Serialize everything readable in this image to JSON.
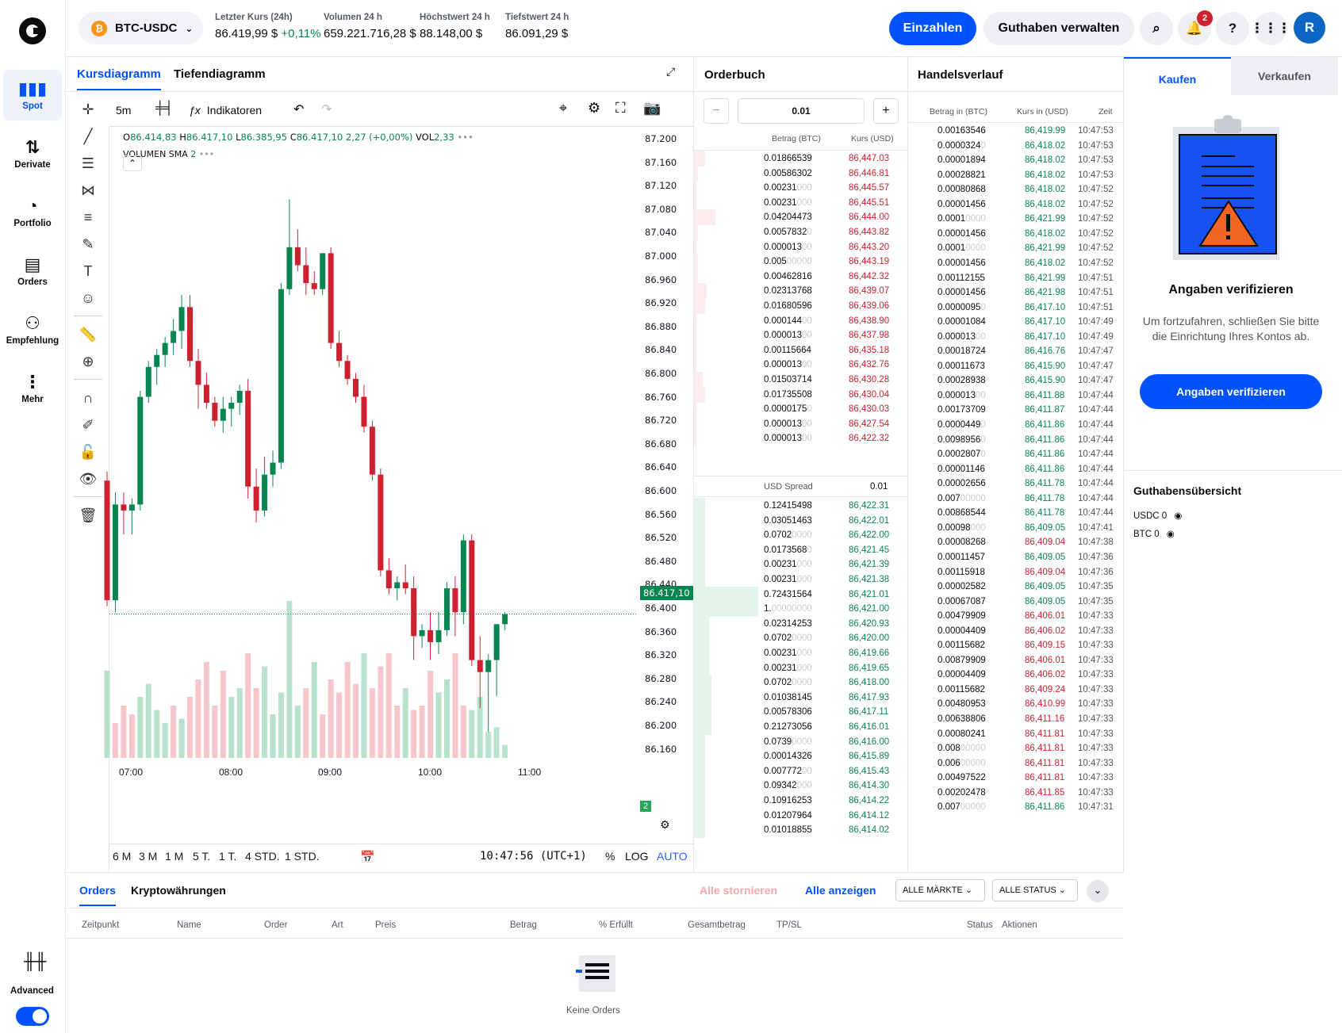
{
  "nav": {
    "items": [
      {
        "label": "Spot",
        "icon": "bar-chart-icon"
      },
      {
        "label": "Derivate",
        "icon": "swap-icon"
      },
      {
        "label": "Portfolio",
        "icon": "pie-chart-icon"
      },
      {
        "label": "Orders",
        "icon": "document-icon"
      },
      {
        "label": "Empfehlung",
        "icon": "add-user-icon"
      },
      {
        "label": "Mehr",
        "icon": "more-icon"
      }
    ],
    "advanced_label": "Advanced",
    "advanced_on": true
  },
  "header": {
    "pair": "BTC-USDC",
    "stats": [
      {
        "label": "Letzter Kurs (24h)",
        "value": "86.419,99 $",
        "change": "+0,11%"
      },
      {
        "label": "Volumen 24 h",
        "value": "659.221.716,28 $"
      },
      {
        "label": "Höchstwert 24 h",
        "value": "88.148,00 $"
      },
      {
        "label": "Tiefstwert 24 h",
        "value": "86.091,29 $"
      }
    ],
    "deposit": "Einzahlen",
    "manage": "Guthaben verwalten",
    "notif_count": "2",
    "help": "?",
    "avatar": "R"
  },
  "chart": {
    "tabs": [
      "Kursdiagramm",
      "Tiefendiagramm"
    ],
    "interval": "5m",
    "indicators": "Indikatoren",
    "ohlc": {
      "o_label": "O",
      "o": "86.414,83",
      "h_label": "H",
      "h": "86.417,10",
      "l_label": "L",
      "l": "86.385,95",
      "c_label": "C",
      "c": "86.417,10",
      "chg": "2,27 (+0,00%)",
      "vol_label": "VOL",
      "vol": "2,33"
    },
    "volume_sma": {
      "label": "VOLUMEN SMA",
      "value": "2"
    },
    "current_price": "86.417,10",
    "volume_badge": "2",
    "ranges": [
      "6 M",
      "3 M",
      "1 M",
      "5 T.",
      "1 T.",
      "4 STD.",
      "1 STD."
    ],
    "clock": "10:47:56 (UTC+1)",
    "pct": "%",
    "log": "LOG",
    "auto": "AUTO"
  },
  "chart_data": {
    "type": "candlestick",
    "y_ticks": [
      "87.200",
      "87.160",
      "87.120",
      "87.080",
      "87.040",
      "87.000",
      "86.960",
      "86.920",
      "86.880",
      "86.840",
      "86.800",
      "86.760",
      "86.720",
      "86.680",
      "86.640",
      "86.600",
      "86.560",
      "86.520",
      "86.480",
      "86.440",
      "86.400",
      "86.360",
      "86.320",
      "86.280",
      "86.240",
      "86.200",
      "86.160"
    ],
    "x_ticks": [
      "07:00",
      "08:00",
      "09:00",
      "10:00",
      "11:00"
    ],
    "ylim": [
      86150,
      87210
    ],
    "ohlc": [
      [
        86640,
        86655,
        86430,
        86440
      ],
      [
        86440,
        86620,
        86420,
        86600
      ],
      [
        86600,
        86620,
        86550,
        86590
      ],
      [
        86590,
        86610,
        86550,
        86600
      ],
      [
        86600,
        86790,
        86590,
        86780
      ],
      [
        86780,
        86840,
        86770,
        86830
      ],
      [
        86830,
        86860,
        86800,
        86850
      ],
      [
        86850,
        86880,
        86830,
        86870
      ],
      [
        86870,
        86910,
        86850,
        86890
      ],
      [
        86890,
        86950,
        86860,
        86930
      ],
      [
        86930,
        86950,
        86830,
        86840
      ],
      [
        86840,
        86860,
        86760,
        86800
      ],
      [
        86800,
        86820,
        86760,
        86770
      ],
      [
        86770,
        86780,
        86730,
        86740
      ],
      [
        86740,
        86780,
        86720,
        86760
      ],
      [
        86760,
        86780,
        86730,
        86770
      ],
      [
        86770,
        86800,
        86750,
        86790
      ],
      [
        86790,
        86810,
        86610,
        86630
      ],
      [
        86630,
        86660,
        86570,
        86590
      ],
      [
        86590,
        86680,
        86580,
        86650
      ],
      [
        86650,
        86690,
        86630,
        86670
      ],
      [
        86670,
        86970,
        86660,
        86960
      ],
      [
        86960,
        87110,
        86950,
        87030
      ],
      [
        87030,
        87060,
        86990,
        87000
      ],
      [
        87000,
        87030,
        86950,
        86970
      ],
      [
        86970,
        86990,
        86950,
        86960
      ],
      [
        86960,
        87020,
        86950,
        87020
      ],
      [
        87020,
        87030,
        86860,
        86870
      ],
      [
        86870,
        86890,
        86830,
        86840
      ],
      [
        86840,
        86850,
        86800,
        86810
      ],
      [
        86810,
        86820,
        86770,
        86780
      ],
      [
        86780,
        86800,
        86720,
        86730
      ],
      [
        86730,
        86740,
        86640,
        86650
      ],
      [
        86650,
        86660,
        86480,
        86490
      ],
      [
        86490,
        86510,
        86450,
        86460
      ],
      [
        86460,
        86480,
        86440,
        86470
      ],
      [
        86470,
        86500,
        86450,
        86460
      ],
      [
        86460,
        86480,
        86340,
        86380
      ],
      [
        86380,
        86400,
        86360,
        86390
      ],
      [
        86390,
        86420,
        86340,
        86370
      ],
      [
        86370,
        86420,
        86350,
        86390
      ],
      [
        86390,
        86470,
        86380,
        86460
      ],
      [
        86460,
        86480,
        86380,
        86420
      ],
      [
        86420,
        86550,
        86400,
        86540
      ],
      [
        86540,
        86550,
        86330,
        86340
      ],
      [
        86340,
        86380,
        86260,
        86320
      ],
      [
        86320,
        86350,
        86220,
        86340
      ],
      [
        86340,
        86400,
        86280,
        86400
      ],
      [
        86400,
        86420,
        86390,
        86417
      ]
    ],
    "volume": [
      [
        20,
        "g"
      ],
      [
        8,
        "r"
      ],
      [
        12,
        "r"
      ],
      [
        10,
        "r"
      ],
      [
        14,
        "g"
      ],
      [
        17,
        "g"
      ],
      [
        11,
        "g"
      ],
      [
        8,
        "g"
      ],
      [
        12,
        "r"
      ],
      [
        9,
        "g"
      ],
      [
        14,
        "r"
      ],
      [
        18,
        "r"
      ],
      [
        22,
        "r"
      ],
      [
        12,
        "r"
      ],
      [
        20,
        "r"
      ],
      [
        14,
        "g"
      ],
      [
        16,
        "g"
      ],
      [
        24,
        "r"
      ],
      [
        16,
        "r"
      ],
      [
        21,
        "g"
      ],
      [
        10,
        "g"
      ],
      [
        15,
        "g"
      ],
      [
        36,
        "g"
      ],
      [
        12,
        "g"
      ],
      [
        16,
        "r"
      ],
      [
        22,
        "g"
      ],
      [
        10,
        "r"
      ],
      [
        18,
        "r"
      ],
      [
        15,
        "r"
      ],
      [
        22,
        "r"
      ],
      [
        17,
        "r"
      ],
      [
        24,
        "g"
      ],
      [
        16,
        "r"
      ],
      [
        21,
        "r"
      ],
      [
        24,
        "r"
      ],
      [
        12,
        "r"
      ],
      [
        16,
        "g"
      ],
      [
        11,
        "r"
      ],
      [
        12,
        "r"
      ],
      [
        20,
        "r"
      ],
      [
        15,
        "g"
      ],
      [
        18,
        "g"
      ],
      [
        24,
        "r"
      ],
      [
        12,
        "r"
      ],
      [
        11,
        "g"
      ],
      [
        14,
        "g"
      ],
      [
        6,
        "g"
      ],
      [
        7,
        "g"
      ],
      [
        3,
        "g"
      ]
    ]
  },
  "orderbook": {
    "title": "Orderbuch",
    "step": "0.01",
    "col_amount": "Betrag (BTC)",
    "col_price": "Kurs (USD)",
    "spread_label": "USD Spread",
    "spread": "0.01",
    "asks": [
      [
        "0.01866539",
        "",
        "86,447.03",
        0.05
      ],
      [
        "0.00586302",
        "",
        "86,446.81",
        0.02
      ],
      [
        "0.00231",
        "000",
        "86,445.57",
        0.01
      ],
      [
        "0.00231",
        "000",
        "86,445.51",
        0.01
      ],
      [
        "0.04204473",
        "",
        "86,444.00",
        0.1
      ],
      [
        "0.0057832",
        "0",
        "86,443.82",
        0.02
      ],
      [
        "0.000013",
        "00",
        "86,443.20",
        0.01
      ],
      [
        "0.005",
        "00000",
        "86,443.19",
        0.02
      ],
      [
        "0.00462816",
        "",
        "86,442.32",
        0.02
      ],
      [
        "0.02313768",
        "",
        "86,439.07",
        0.06
      ],
      [
        "0.01680596",
        "",
        "86,439.06",
        0.05
      ],
      [
        "0.000144",
        "00",
        "86,438.90",
        0.01
      ],
      [
        "0.000013",
        "00",
        "86,437.98",
        0.01
      ],
      [
        "0.00115664",
        "",
        "86,435.18",
        0.01
      ],
      [
        "0.000013",
        "00",
        "86,432.76",
        0.01
      ],
      [
        "0.01503714",
        "",
        "86,430.28",
        0.04
      ],
      [
        "0.01735508",
        "",
        "86,430.04",
        0.05
      ],
      [
        "0.0000175",
        "0",
        "86,430.03",
        0.01
      ],
      [
        "0.000013",
        "00",
        "86,427.54",
        0.01
      ],
      [
        "0.000013",
        "00",
        "86,422.32",
        0.01
      ]
    ],
    "bids": [
      [
        "0.12415498",
        "",
        "86,422.31",
        0.05
      ],
      [
        "0.03051463",
        "",
        "86,422.01",
        0.05
      ],
      [
        "0.0702",
        "0000",
        "86,422.00",
        0.05
      ],
      [
        "0.0173568",
        "0",
        "86,421.45",
        0.05
      ],
      [
        "0.00231",
        "000",
        "86,421.39",
        0.05
      ],
      [
        "0.00231",
        "000",
        "86,421.38",
        0.05
      ],
      [
        "0.72431564",
        "",
        "86,421.01",
        0.3
      ],
      [
        "1.",
        "00000000",
        "86,421.00",
        0.3
      ],
      [
        "0.02314253",
        "",
        "86,420.93",
        0.07
      ],
      [
        "0.0702",
        "0000",
        "86,420.00",
        0.07
      ],
      [
        "0.00231",
        "000",
        "86,419.66",
        0.07
      ],
      [
        "0.00231",
        "000",
        "86,419.65",
        0.07
      ],
      [
        "0.0702",
        "0000",
        "86,418.00",
        0.08
      ],
      [
        "0.01038145",
        "",
        "86,417.93",
        0.08
      ],
      [
        "0.00578306",
        "",
        "86,417.11",
        0.08
      ],
      [
        "0.21273056",
        "",
        "86,416.01",
        0.08
      ],
      [
        "0.0739",
        "0000",
        "86,416.00",
        0.05
      ],
      [
        "0.00014326",
        "",
        "86,415.89",
        0.05
      ],
      [
        "0.007772",
        "00",
        "86,415.43",
        0.05
      ],
      [
        "0.09342",
        "000",
        "86,414.30",
        0.05
      ],
      [
        "0.10916253",
        "",
        "86,414.22",
        0.05
      ],
      [
        "0.01207964",
        "",
        "86,414.12",
        0.05
      ],
      [
        "0.01018855",
        "",
        "86,414.02",
        0.05
      ]
    ]
  },
  "trades": {
    "title": "Handelsverlauf",
    "col_amount": "Betrag in (BTC)",
    "col_price": "Kurs in (USD)",
    "col_time": "Zeit",
    "rows": [
      [
        "0.00163546",
        "",
        "86,419.99",
        "10:47:53",
        "g"
      ],
      [
        "0.0000324",
        "0",
        "86,418.02",
        "10:47:53",
        "g"
      ],
      [
        "0.00001894",
        "",
        "86,418.02",
        "10:47:53",
        "g"
      ],
      [
        "0.00028821",
        "",
        "86,418.02",
        "10:47:53",
        "g"
      ],
      [
        "0.00080868",
        "",
        "86,418.02",
        "10:47:52",
        "g"
      ],
      [
        "0.00001456",
        "",
        "86,418.02",
        "10:47:52",
        "g"
      ],
      [
        "0.0001",
        "0000",
        "86,421.99",
        "10:47:52",
        "g"
      ],
      [
        "0.00001456",
        "",
        "86,418.02",
        "10:47:52",
        "g"
      ],
      [
        "0.0001",
        "0000",
        "86,421.99",
        "10:47:52",
        "g"
      ],
      [
        "0.00001456",
        "",
        "86,418.02",
        "10:47:52",
        "g"
      ],
      [
        "0.00112155",
        "",
        "86,421.99",
        "10:47:51",
        "g"
      ],
      [
        "0.00001456",
        "",
        "86,421.98",
        "10:47:51",
        "g"
      ],
      [
        "0.0000095",
        "0",
        "86,417.10",
        "10:47:51",
        "g"
      ],
      [
        "0.00001084",
        "",
        "86,417.10",
        "10:47:49",
        "g"
      ],
      [
        "0.000013",
        "00",
        "86,417.10",
        "10:47:49",
        "g"
      ],
      [
        "0.00018724",
        "",
        "86,416.76",
        "10:47:47",
        "g"
      ],
      [
        "0.00011673",
        "",
        "86,415.90",
        "10:47:47",
        "g"
      ],
      [
        "0.00028938",
        "",
        "86,415.90",
        "10:47:47",
        "g"
      ],
      [
        "0.000013",
        "00",
        "86,411.88",
        "10:47:44",
        "g"
      ],
      [
        "0.00173709",
        "",
        "86,411.87",
        "10:47:44",
        "g"
      ],
      [
        "0.0000449",
        "0",
        "86,411.86",
        "10:47:44",
        "g"
      ],
      [
        "0.0098956",
        "0",
        "86,411.86",
        "10:47:44",
        "g"
      ],
      [
        "0.0002807",
        "0",
        "86,411.86",
        "10:47:44",
        "g"
      ],
      [
        "0.00001146",
        "",
        "86,411.86",
        "10:47:44",
        "g"
      ],
      [
        "0.00002656",
        "",
        "86,411.78",
        "10:47:44",
        "g"
      ],
      [
        "0.007",
        "00000",
        "86,411.78",
        "10:47:44",
        "g"
      ],
      [
        "0.00868544",
        "",
        "86,411.78",
        "10:47:44",
        "g"
      ],
      [
        "0.00098",
        "000",
        "86,409.05",
        "10:47:41",
        "g"
      ],
      [
        "0.00008268",
        "",
        "86,409.04",
        "10:47:38",
        "r"
      ],
      [
        "0.00011457",
        "",
        "86,409.05",
        "10:47:36",
        "g"
      ],
      [
        "0.00115918",
        "",
        "86,409.04",
        "10:47:36",
        "r"
      ],
      [
        "0.00002582",
        "",
        "86,409.05",
        "10:47:35",
        "g"
      ],
      [
        "0.00067087",
        "",
        "86,409.05",
        "10:47:35",
        "g"
      ],
      [
        "0.00479909",
        "",
        "86,406.01",
        "10:47:33",
        "r"
      ],
      [
        "0.00004409",
        "",
        "86,406.02",
        "10:47:33",
        "r"
      ],
      [
        "0.00115682",
        "",
        "86,409.15",
        "10:47:33",
        "r"
      ],
      [
        "0.00879909",
        "",
        "86,406.01",
        "10:47:33",
        "r"
      ],
      [
        "0.00004409",
        "",
        "86,406.02",
        "10:47:33",
        "r"
      ],
      [
        "0.00115682",
        "",
        "86,409.24",
        "10:47:33",
        "r"
      ],
      [
        "0.00480953",
        "",
        "86,410.99",
        "10:47:33",
        "r"
      ],
      [
        "0.00638806",
        "",
        "86,411.16",
        "10:47:33",
        "r"
      ],
      [
        "0.00080241",
        "",
        "86,411.81",
        "10:47:33",
        "r"
      ],
      [
        "0.008",
        "00000",
        "86,411.81",
        "10:47:33",
        "r"
      ],
      [
        "0.006",
        "00000",
        "86,411.81",
        "10:47:33",
        "r"
      ],
      [
        "0.00497522",
        "",
        "86,411.81",
        "10:47:33",
        "r"
      ],
      [
        "0.00202478",
        "",
        "86,411.85",
        "10:47:33",
        "r"
      ],
      [
        "0.007",
        "00000",
        "86,411.86",
        "10:47:31",
        "g"
      ]
    ]
  },
  "trade_panel": {
    "buy": "Kaufen",
    "sell": "Verkaufen",
    "verify_title": "Angaben verifizieren",
    "verify_text": "Um fortzufahren, schließen Sie bitte die Einrichtung Ihres Kontos ab.",
    "verify_button": "Angaben verifizieren",
    "balance_title": "Guthabensübersicht",
    "balances": [
      "USDC 0",
      "BTC 0"
    ]
  },
  "orders": {
    "tabs": [
      "Orders",
      "Kryptowährungen"
    ],
    "cancel_all": "Alle stornieren",
    "show_all": "Alle anzeigen",
    "filter_market": "ALLE MÄRKTE",
    "filter_status": "ALLE STATUS",
    "columns": [
      "Zeitpunkt",
      "Name",
      "Order",
      "Art",
      "Preis",
      "Betrag",
      "% Erfüllt",
      "Gesamtbetrag",
      "TP/SL",
      "Status",
      "Aktionen"
    ],
    "empty": "Keine Orders"
  }
}
